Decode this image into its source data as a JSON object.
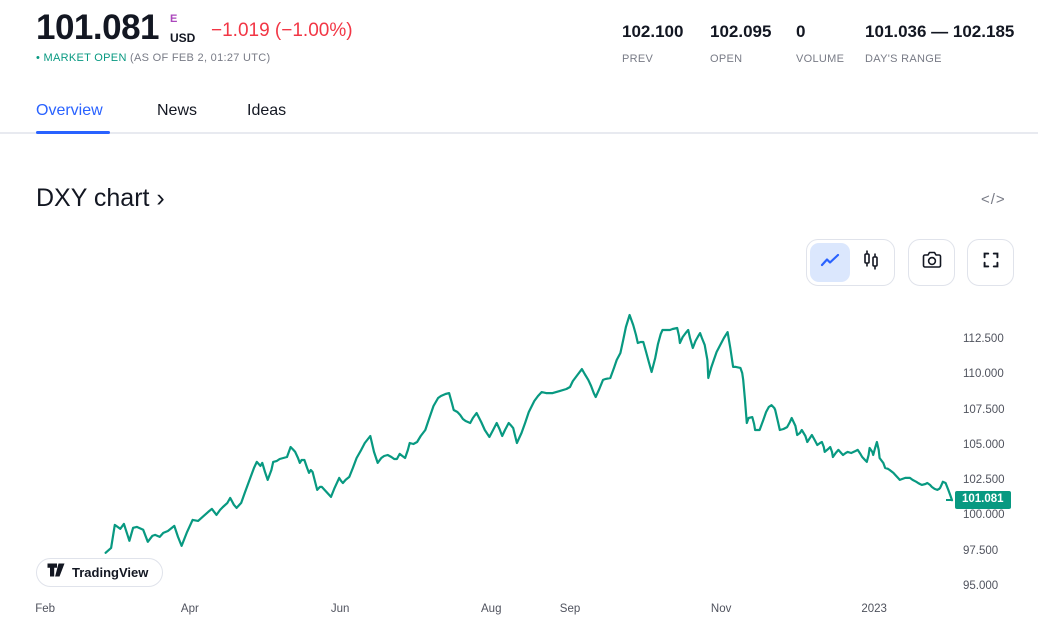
{
  "header": {
    "price": "101.081",
    "market_flag": "E",
    "currency": "USD",
    "change": "−1.019 (−1.00%)",
    "market_status_bullet": "•",
    "market_status": "MARKET OPEN",
    "as_of": "(AS OF FEB 2, 01:27 UTC)",
    "stats": [
      {
        "value": "102.100",
        "label": "PREV"
      },
      {
        "value": "102.095",
        "label": "OPEN"
      },
      {
        "value": "0",
        "label": "VOLUME"
      },
      {
        "value": "101.036 — 102.185",
        "label": "DAY'S RANGE"
      }
    ]
  },
  "tabs": [
    {
      "label": "Overview",
      "active": true
    },
    {
      "label": "News",
      "active": false
    },
    {
      "label": "Ideas",
      "active": false
    }
  ],
  "section": {
    "title": "DXY chart ›",
    "embed_icon": "</>"
  },
  "toolbar": {
    "chart_type_options": [
      "line-chart",
      "candlestick-chart"
    ],
    "active_chart_type": "line-chart",
    "buttons": [
      "screenshot",
      "fullscreen"
    ]
  },
  "attribution": {
    "brand": "TradingView"
  },
  "colors": {
    "accent_blue": "#2962ff",
    "line_teal": "#089981",
    "negative_red": "#f23645",
    "flag_purple": "#ab47bc",
    "text_dark": "#131722",
    "text_gray": "#787b86",
    "border_gray": "#e0e3eb"
  },
  "chart_data": {
    "type": "line",
    "symbol": "DXY",
    "title": "DXY chart",
    "legend": "none",
    "grid": false,
    "x_range": [
      "Feb 2022",
      "Feb 2023"
    ],
    "ylim": [
      94.0,
      115.5
    ],
    "last_price": 101.081,
    "last_price_label": "101.081",
    "line_color": "#089981",
    "y_ticks": [
      {
        "label": "112.500",
        "value": 112.5
      },
      {
        "label": "110.000",
        "value": 110.0
      },
      {
        "label": "107.500",
        "value": 107.5
      },
      {
        "label": "105.000",
        "value": 105.0
      },
      {
        "label": "102.500",
        "value": 102.5
      },
      {
        "label": "100.000",
        "value": 100.0
      },
      {
        "label": "97.500",
        "value": 97.5
      },
      {
        "label": "95.000",
        "value": 95.0
      }
    ],
    "x_ticks": [
      {
        "label": "Feb",
        "f": 0.01
      },
      {
        "label": "Apr",
        "f": 0.168
      },
      {
        "label": "Jun",
        "f": 0.332
      },
      {
        "label": "Aug",
        "f": 0.497
      },
      {
        "label": "Sep",
        "f": 0.583
      },
      {
        "label": "Nov",
        "f": 0.748
      },
      {
        "label": "2023",
        "f": 0.915
      }
    ],
    "points": [
      0.076,
      97.35,
      0.082,
      97.7,
      0.086,
      99.33,
      0.092,
      99.05,
      0.096,
      99.4,
      0.102,
      98.2,
      0.106,
      99.12,
      0.11,
      99.19,
      0.117,
      98.98,
      0.122,
      98.13,
      0.127,
      98.55,
      0.13,
      98.62,
      0.135,
      98.48,
      0.139,
      98.76,
      0.144,
      98.9,
      0.151,
      99.26,
      0.155,
      98.48,
      0.159,
      97.84,
      0.165,
      98.83,
      0.171,
      99.68,
      0.177,
      99.61,
      0.182,
      99.9,
      0.188,
      100.25,
      0.192,
      100.46,
      0.197,
      100.04,
      0.201,
      100.39,
      0.204,
      100.6,
      0.209,
      100.89,
      0.212,
      101.24,
      0.216,
      100.75,
      0.219,
      100.53,
      0.224,
      100.89,
      0.228,
      101.6,
      0.234,
      102.66,
      0.238,
      103.37,
      0.241,
      103.79,
      0.245,
      103.51,
      0.247,
      103.72,
      0.25,
      103.08,
      0.253,
      102.52,
      0.257,
      103.22,
      0.259,
      103.79,
      0.263,
      103.86,
      0.266,
      104.0,
      0.27,
      104.07,
      0.274,
      104.14,
      0.278,
      104.85,
      0.281,
      104.64,
      0.283,
      104.5,
      0.286,
      104.07,
      0.288,
      103.72,
      0.29,
      103.93,
      0.293,
      103.93,
      0.296,
      103.37,
      0.298,
      103.01,
      0.3,
      103.22,
      0.302,
      103.08,
      0.305,
      102.3,
      0.307,
      101.81,
      0.31,
      102.02,
      0.312,
      102.02,
      0.317,
      101.67,
      0.322,
      101.31,
      0.326,
      101.95,
      0.331,
      102.66,
      0.333,
      102.45,
      0.335,
      102.3,
      0.338,
      102.52,
      0.342,
      102.73,
      0.346,
      103.37,
      0.35,
      104.07,
      0.355,
      104.64,
      0.359,
      105.13,
      0.365,
      105.63,
      0.369,
      104.5,
      0.373,
      103.72,
      0.377,
      104.07,
      0.38,
      104.21,
      0.384,
      104.28,
      0.388,
      104.14,
      0.391,
      104.0,
      0.394,
      104.0,
      0.397,
      104.36,
      0.4,
      104.21,
      0.403,
      104.07,
      0.406,
      104.64,
      0.408,
      105.13,
      0.412,
      105.06,
      0.416,
      105.2,
      0.42,
      105.63,
      0.425,
      106.05,
      0.429,
      106.83,
      0.434,
      107.75,
      0.439,
      108.32,
      0.442,
      108.46,
      0.447,
      108.6,
      0.451,
      108.67,
      0.454,
      107.96,
      0.456,
      107.47,
      0.46,
      107.33,
      0.463,
      107.12,
      0.466,
      106.83,
      0.469,
      106.69,
      0.474,
      106.55,
      0.477,
      106.9,
      0.481,
      107.26,
      0.486,
      106.62,
      0.49,
      106.05,
      0.495,
      105.56,
      0.499,
      106.05,
      0.503,
      106.55,
      0.506,
      106.12,
      0.509,
      105.63,
      0.512,
      106.05,
      0.516,
      106.55,
      0.519,
      106.34,
      0.521,
      106.19,
      0.525,
      105.13,
      0.53,
      105.84,
      0.534,
      106.55,
      0.538,
      107.33,
      0.544,
      108.11,
      0.548,
      108.46,
      0.552,
      108.74,
      0.557,
      108.67,
      0.564,
      108.67,
      0.572,
      108.82,
      0.579,
      108.96,
      0.583,
      109.1,
      0.586,
      109.52,
      0.591,
      109.95,
      0.596,
      110.37,
      0.599,
      110.02,
      0.603,
      109.6,
      0.606,
      109.17,
      0.609,
      108.67,
      0.611,
      108.39,
      0.615,
      108.96,
      0.619,
      109.6,
      0.622,
      109.67,
      0.627,
      109.74,
      0.631,
      110.45,
      0.634,
      111.01,
      0.638,
      111.51,
      0.641,
      112.43,
      0.644,
      113.35,
      0.648,
      114.2,
      0.652,
      113.49,
      0.655,
      112.78,
      0.657,
      112.22,
      0.66,
      112.29,
      0.663,
      112.29,
      0.666,
      111.58,
      0.669,
      110.87,
      0.672,
      110.16,
      0.676,
      111.15,
      0.679,
      112.15,
      0.682,
      112.85,
      0.684,
      113.14,
      0.692,
      113.14,
      0.695,
      113.21,
      0.7,
      113.28,
      0.702,
      112.71,
      0.703,
      112.22,
      0.706,
      112.64,
      0.71,
      112.99,
      0.712,
      113.14,
      0.714,
      112.57,
      0.717,
      111.86,
      0.72,
      112.36,
      0.723,
      112.71,
      0.725,
      112.92,
      0.727,
      112.57,
      0.73,
      112.08,
      0.733,
      111.01,
      0.734,
      109.74,
      0.737,
      110.45,
      0.74,
      111.01,
      0.743,
      111.58,
      0.747,
      112.08,
      0.751,
      112.57,
      0.755,
      112.99,
      0.758,
      111.86,
      0.761,
      110.52,
      0.764,
      110.52,
      0.769,
      110.45,
      0.771,
      110.09,
      0.772,
      109.6,
      0.774,
      108.18,
      0.776,
      106.55,
      0.778,
      106.9,
      0.782,
      106.97,
      0.784,
      106.48,
      0.785,
      106.05,
      0.79,
      106.05,
      0.794,
      106.76,
      0.797,
      107.33,
      0.8,
      107.68,
      0.803,
      107.82,
      0.806,
      107.61,
      0.807,
      107.47,
      0.81,
      106.62,
      0.812,
      106.05,
      0.816,
      106.12,
      0.82,
      106.26,
      0.823,
      106.62,
      0.825,
      106.9,
      0.829,
      106.34,
      0.831,
      105.7,
      0.834,
      105.84,
      0.836,
      106.05,
      0.84,
      105.63,
      0.842,
      105.2,
      0.845,
      105.49,
      0.847,
      105.7,
      0.85,
      105.35,
      0.853,
      104.99,
      0.856,
      105.13,
      0.858,
      105.2,
      0.86,
      104.85,
      0.861,
      104.5,
      0.865,
      104.71,
      0.867,
      104.85,
      0.869,
      104.5,
      0.87,
      104.14,
      0.873,
      104.42,
      0.876,
      104.64,
      0.879,
      104.42,
      0.881,
      104.28,
      0.884,
      104.42,
      0.886,
      104.5,
      0.89,
      104.42,
      0.895,
      104.57,
      0.897,
      104.64,
      0.9,
      104.36,
      0.902,
      104.14,
      0.905,
      103.93,
      0.907,
      103.79,
      0.909,
      104.28,
      0.91,
      104.78,
      0.913,
      104.5,
      0.914,
      104.28,
      0.916,
      104.78,
      0.918,
      105.2,
      0.92,
      104.64,
      0.921,
      104.07,
      0.925,
      103.72,
      0.927,
      103.37,
      0.93,
      103.3,
      0.932,
      103.22,
      0.936,
      103.01,
      0.938,
      102.87,
      0.941,
      102.66,
      0.943,
      102.52,
      0.946,
      102.59,
      0.949,
      102.66,
      0.954,
      102.66,
      0.957,
      102.52,
      0.961,
      102.38,
      0.963,
      102.3,
      0.965,
      102.23,
      0.967,
      102.16,
      0.971,
      102.23,
      0.973,
      102.3,
      0.976,
      102.16,
      0.978,
      102.02,
      0.981,
      101.88,
      0.984,
      101.81,
      0.986,
      101.88,
      0.987,
      101.95,
      0.989,
      102.23,
      0.99,
      102.38,
      0.993,
      102.3,
      0.996,
      101.81,
      0.998,
      101.45,
      1.0,
      101.08
    ]
  }
}
